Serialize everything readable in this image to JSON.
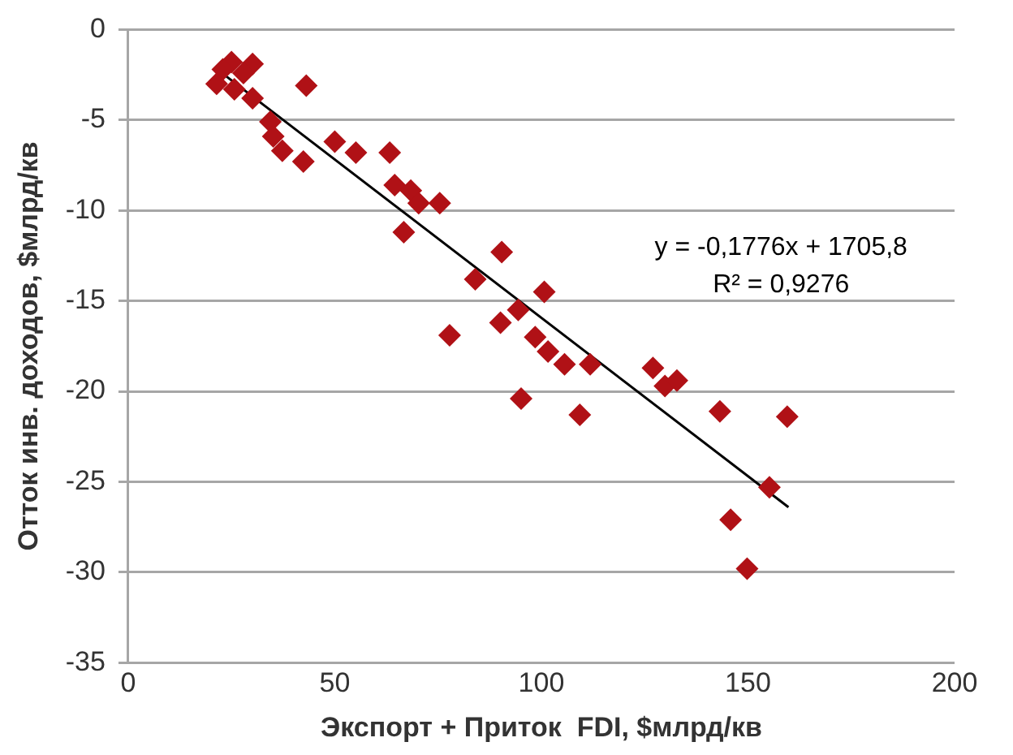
{
  "chart_data": {
    "type": "scatter",
    "xlabel": "Экспорт + Приток  FDI, $млрд/кв",
    "ylabel": "Отток инв. доходов, $млрд/кв",
    "xlim": [
      0,
      200
    ],
    "xticks": [
      0,
      50,
      100,
      150,
      200
    ],
    "ylim": [
      -35,
      0
    ],
    "yticks": [
      0,
      -5,
      -10,
      -15,
      -20,
      -25,
      -30,
      -35
    ],
    "grid": "y",
    "legend": false,
    "annotations": [
      "y = -0,1776x + 1705,8",
      "R² = 0,9276"
    ],
    "series": [
      {
        "marker": "diamond",
        "color": "#b01116",
        "x": [
          25.0,
          30.1,
          22.9,
          27.9,
          21.4,
          25.7,
          30.1,
          43.1,
          34.4,
          35.1,
          37.3,
          42.4,
          50.0,
          55.1,
          63.3,
          64.5,
          68.4,
          70.3,
          75.4,
          66.7,
          90.4,
          84.0,
          90.1,
          77.8,
          100.7,
          94.4,
          98.5,
          101.6,
          105.6,
          111.8,
          127.0,
          129.9,
          132.8,
          95.1,
          109.3,
          143.2,
          159.5,
          155.2,
          145.8,
          149.8
        ],
        "values": [
          -1.8,
          -1.9,
          -2.2,
          -2.4,
          -3.0,
          -3.3,
          -3.8,
          -3.1,
          -5.1,
          -5.9,
          -6.7,
          -7.3,
          -6.2,
          -6.8,
          -6.8,
          -8.6,
          -8.9,
          -9.6,
          -9.6,
          -11.2,
          -12.3,
          -13.8,
          -16.2,
          -16.9,
          -14.5,
          -15.5,
          -17.0,
          -17.8,
          -18.5,
          -18.5,
          -18.7,
          -19.7,
          -19.4,
          -20.4,
          -21.3,
          -21.1,
          -21.4,
          -25.3,
          -27.1,
          -29.8
        ]
      },
      {
        "type": "line",
        "marker": "none",
        "color": "#000000",
        "x": [
          22.1,
          159.8
        ],
        "values": [
          -2.3,
          -26.4
        ]
      }
    ]
  }
}
